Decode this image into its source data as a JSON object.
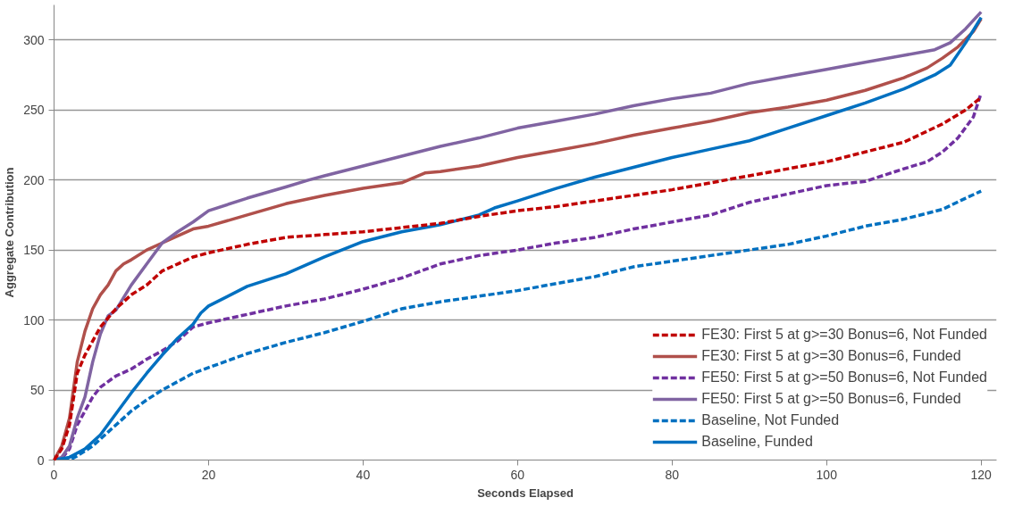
{
  "chart_data": {
    "type": "line",
    "xlabel": "Seconds Elapsed",
    "ylabel": "Aggregate Contribution",
    "xlim": [
      0,
      122
    ],
    "ylim": [
      0,
      325
    ],
    "xticks": [
      0,
      20,
      40,
      60,
      80,
      100,
      120
    ],
    "yticks": [
      0,
      50,
      100,
      150,
      200,
      250,
      300
    ],
    "grid": "y",
    "legend": "bottom right",
    "marker": "none",
    "series": [
      {
        "name": "FE30: First 5 at g>=30 Bonus=6, Not Funded",
        "color": "#c00000",
        "line_style": "dashed",
        "x": [
          0,
          1,
          2,
          3,
          4,
          5,
          6,
          8,
          10,
          12,
          14,
          16,
          18,
          20,
          25,
          30,
          35,
          40,
          45,
          50,
          55,
          60,
          65,
          70,
          75,
          80,
          85,
          90,
          95,
          100,
          105,
          110,
          115,
          118,
          120
        ],
        "values": [
          0,
          8,
          25,
          62,
          75,
          85,
          95,
          108,
          118,
          125,
          135,
          140,
          145,
          148,
          154,
          159,
          161,
          163,
          166,
          169,
          174,
          178,
          181,
          185,
          189,
          193,
          198,
          203,
          208,
          213,
          220,
          227,
          240,
          250,
          259
        ]
      },
      {
        "name": "FE30: First 5 at g>=30 Bonus=6, Funded",
        "color": "#b0504b",
        "line_style": "solid",
        "x": [
          0,
          1,
          2,
          3,
          4,
          5,
          6,
          7,
          8,
          9,
          10,
          12,
          14,
          16,
          18,
          20,
          25,
          30,
          35,
          40,
          45,
          48,
          50,
          55,
          60,
          65,
          70,
          75,
          80,
          85,
          90,
          95,
          100,
          105,
          110,
          113,
          115,
          117,
          119,
          120
        ],
        "values": [
          0,
          10,
          30,
          70,
          92,
          108,
          118,
          125,
          135,
          140,
          143,
          150,
          155,
          160,
          165,
          167,
          175,
          183,
          189,
          194,
          198,
          205,
          206,
          210,
          216,
          221,
          226,
          232,
          237,
          242,
          248,
          252,
          257,
          264,
          273,
          280,
          287,
          295,
          306,
          315
        ]
      },
      {
        "name": "FE50: First 5 at g>=50 Bonus=6, Not Funded",
        "color": "#7030a0",
        "line_style": "dashed",
        "x": [
          0,
          1,
          2,
          3,
          4,
          5,
          6,
          8,
          10,
          12,
          14,
          16,
          18,
          20,
          25,
          30,
          35,
          40,
          45,
          50,
          55,
          60,
          65,
          70,
          75,
          80,
          85,
          90,
          95,
          100,
          105,
          110,
          113,
          115,
          117,
          119,
          120
        ],
        "values": [
          0,
          1,
          8,
          25,
          35,
          45,
          52,
          60,
          65,
          72,
          78,
          85,
          95,
          98,
          104,
          110,
          115,
          122,
          130,
          140,
          146,
          150,
          155,
          159,
          165,
          170,
          175,
          184,
          190,
          196,
          199,
          208,
          213,
          220,
          230,
          245,
          262
        ]
      },
      {
        "name": "FE50: First 5 at g>=50 Bonus=6, Funded",
        "color": "#8064a2",
        "line_style": "solid",
        "x": [
          0,
          1,
          2,
          3,
          4,
          5,
          6,
          7,
          8,
          10,
          12,
          14,
          16,
          18,
          20,
          25,
          30,
          33,
          35,
          40,
          45,
          50,
          55,
          60,
          65,
          70,
          75,
          80,
          85,
          90,
          95,
          100,
          105,
          110,
          114,
          116,
          118,
          120
        ],
        "values": [
          0,
          2,
          10,
          30,
          45,
          70,
          90,
          103,
          107,
          125,
          140,
          155,
          163,
          170,
          178,
          187,
          195,
          200,
          203,
          210,
          217,
          224,
          230,
          237,
          242,
          247,
          253,
          258,
          262,
          269,
          274,
          279,
          284,
          289,
          293,
          298,
          308,
          320
        ]
      },
      {
        "name": "Baseline, Not Funded",
        "color": "#0070c0",
        "line_style": "dashed",
        "x": [
          0,
          2,
          3,
          5,
          7,
          10,
          12,
          14,
          16,
          18,
          20,
          25,
          30,
          35,
          40,
          45,
          50,
          55,
          60,
          65,
          70,
          75,
          80,
          85,
          90,
          95,
          100,
          105,
          110,
          115,
          118,
          120
        ],
        "values": [
          0,
          0,
          3,
          10,
          20,
          35,
          43,
          50,
          56,
          62,
          66,
          76,
          84,
          91,
          99,
          108,
          113,
          117,
          121,
          126,
          131,
          138,
          142,
          146,
          150,
          154,
          160,
          167,
          172,
          179,
          187,
          192
        ]
      },
      {
        "name": "Baseline, Funded",
        "color": "#0070c0",
        "line_style": "solid",
        "x": [
          0,
          2,
          4,
          6,
          8,
          10,
          12,
          14,
          16,
          18,
          19,
          20,
          25,
          30,
          35,
          40,
          45,
          50,
          55,
          57,
          60,
          65,
          70,
          75,
          80,
          85,
          90,
          95,
          100,
          105,
          110,
          114,
          116,
          118,
          120
        ],
        "values": [
          0,
          2,
          8,
          18,
          33,
          48,
          62,
          75,
          87,
          97,
          105,
          110,
          124,
          133,
          145,
          156,
          163,
          168,
          175,
          180,
          185,
          194,
          202,
          209,
          216,
          222,
          228,
          237,
          246,
          255,
          265,
          275,
          282,
          298,
          316
        ]
      }
    ]
  }
}
